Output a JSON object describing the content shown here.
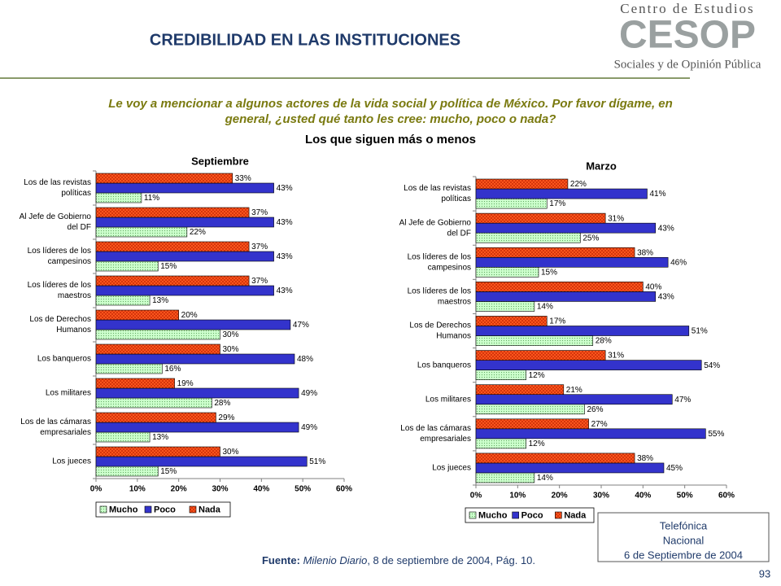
{
  "header": {
    "title": "CREDIBILIDAD EN LAS INSTITUCIONES",
    "logo_top": "Centro de Estudios",
    "logo_mark": "CESOP",
    "logo_bottom": "Sociales y de Opinión Pública"
  },
  "question": [
    "Le voy a mencionar a algunos actores de la vida social y política de México. Por favor dígame, en",
    "general, ¿usted qué tanto les cree: mucho, poco o nada?"
  ],
  "subtitle": "Los que siguen más o menos",
  "chart_data": [
    {
      "type": "bar",
      "orientation": "horizontal",
      "title": "Septiembre",
      "categories": [
        [
          "Los de las revistas",
          "políticas"
        ],
        [
          "Al Jefe de Gobierno",
          "del DF"
        ],
        [
          "Los líderes de los",
          "campesinos"
        ],
        [
          "Los líderes de los",
          "maestros"
        ],
        [
          "Los de Derechos",
          "Humanos"
        ],
        [
          "Los banqueros"
        ],
        [
          "Los militares"
        ],
        [
          "Los de las cámaras",
          "empresariales"
        ],
        [
          "Los jueces"
        ]
      ],
      "series": [
        {
          "name": "Mucho",
          "color": "#ccffcc",
          "values": [
            11,
            22,
            15,
            13,
            30,
            16,
            28,
            13,
            15
          ],
          "value_labels": [
            "11%",
            "22%",
            "15%",
            "13%",
            "30%",
            "16%",
            "28%",
            "13%",
            "15%"
          ]
        },
        {
          "name": "Poco",
          "color": "#3333cc",
          "values": [
            43,
            43,
            43,
            43,
            47,
            48,
            49,
            49,
            51
          ],
          "value_labels": [
            "43%",
            "43%",
            "43%",
            "43%",
            "47%",
            "48%",
            "49%",
            "49%",
            "51%"
          ]
        },
        {
          "name": "Nada",
          "color": "#ff5a1f",
          "values": [
            33,
            37,
            37,
            37,
            20,
            30,
            19,
            29,
            30
          ],
          "value_labels": [
            "33%",
            "37%",
            "37%",
            "37%",
            "20%",
            "30%",
            "19%",
            "29%",
            "30%"
          ]
        }
      ],
      "xlim": [
        0,
        60
      ],
      "xticks": [
        {
          "value": 0,
          "label": "0%"
        },
        {
          "value": 10,
          "label": "10%"
        },
        {
          "value": 20,
          "label": "20%"
        },
        {
          "value": 30,
          "label": "30%"
        },
        {
          "value": 40,
          "label": "40%"
        },
        {
          "value": 50,
          "label": "50%"
        },
        {
          "value": 60,
          "label": "60%"
        }
      ],
      "legend": "bottom"
    },
    {
      "type": "bar",
      "orientation": "horizontal",
      "title": "Marzo",
      "categories": [
        [
          "Los de las revistas",
          "políticas"
        ],
        [
          "Al Jefe de Gobierno",
          "del DF"
        ],
        [
          "Los líderes de los",
          "campesinos"
        ],
        [
          "Los líderes de los",
          "maestros"
        ],
        [
          "Los de Derechos",
          "Humanos"
        ],
        [
          "Los banqueros"
        ],
        [
          "Los militares"
        ],
        [
          "Los de las cámaras",
          "empresariales"
        ],
        [
          "Los jueces"
        ]
      ],
      "series": [
        {
          "name": "Mucho",
          "color": "#ccffcc",
          "values": [
            17,
            25,
            15,
            14,
            28,
            12,
            26,
            12,
            14
          ],
          "value_labels": [
            "17%",
            "25%",
            "15%",
            "14%",
            "28%",
            "12%",
            "26%",
            "12%",
            "14%"
          ]
        },
        {
          "name": "Poco",
          "color": "#3333cc",
          "values": [
            41,
            43,
            46,
            43,
            51,
            54,
            47,
            55,
            45
          ],
          "value_labels": [
            "41%",
            "43%",
            "46%",
            "43%",
            "51%",
            "54%",
            "47%",
            "55%",
            "45%"
          ]
        },
        {
          "name": "Nada",
          "color": "#ff5a1f",
          "values": [
            22,
            31,
            38,
            40,
            17,
            31,
            21,
            27,
            38
          ],
          "value_labels": [
            "22%",
            "31%",
            "38%",
            "40%",
            "17%",
            "31%",
            "21%",
            "27%",
            "38%"
          ]
        }
      ],
      "xlim": [
        0,
        60
      ],
      "xticks": [
        {
          "value": 0,
          "label": "0%"
        },
        {
          "value": 10,
          "label": "10%"
        },
        {
          "value": 20,
          "label": "20%"
        },
        {
          "value": 30,
          "label": "30%"
        },
        {
          "value": 40,
          "label": "40%"
        },
        {
          "value": 50,
          "label": "50%"
        },
        {
          "value": 60,
          "label": "60%"
        }
      ],
      "legend": "bottom"
    }
  ],
  "footer": {
    "source_label": "Fuente:",
    "source_title": "Milenio Diario",
    "source_rest": ", 8 de septiembre de 2004, Pág. 10.",
    "box": [
      "Telefónica",
      "Nacional",
      "6 de Septiembre de 2004"
    ],
    "page": "93"
  }
}
